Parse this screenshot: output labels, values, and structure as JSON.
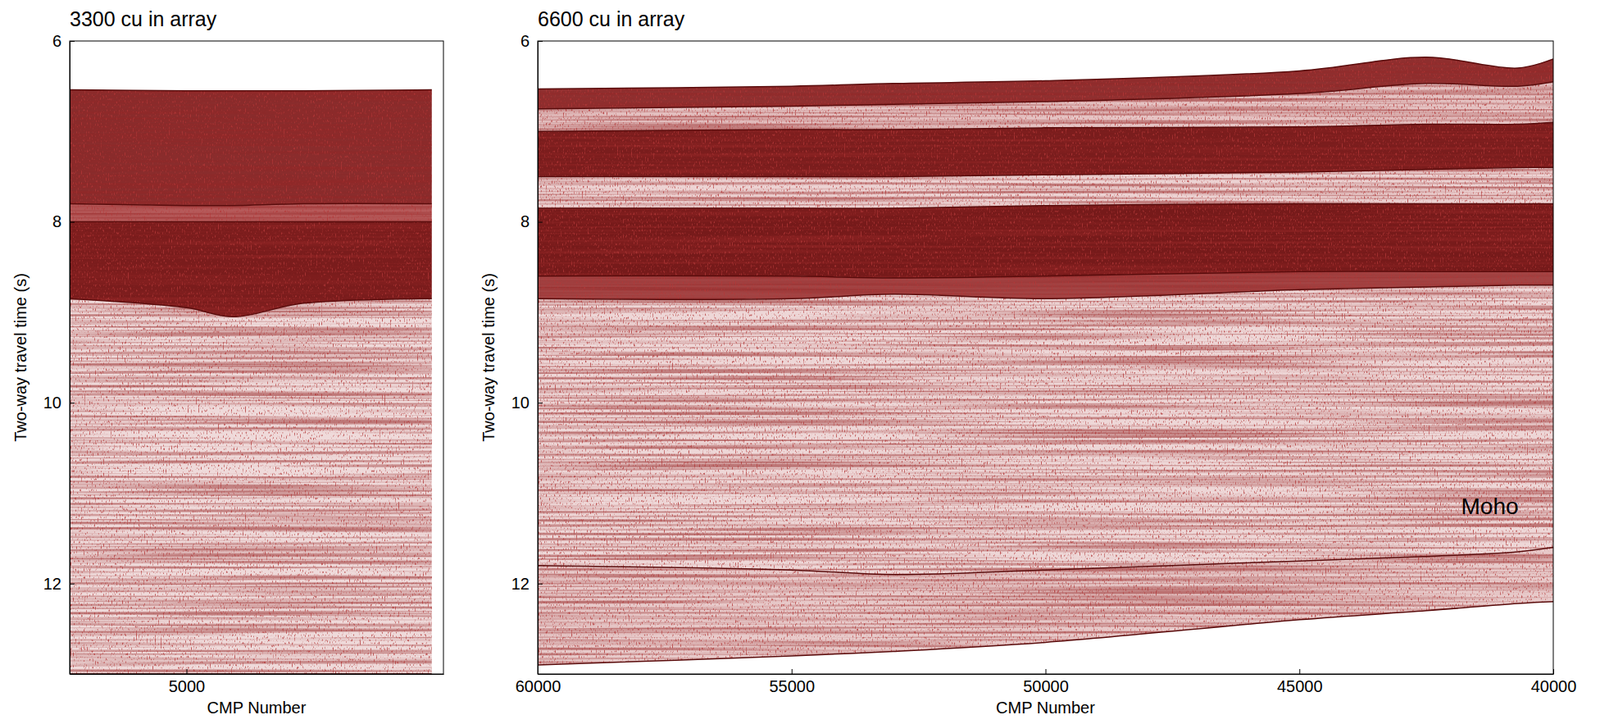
{
  "chart_data": [
    {
      "type": "seismic",
      "title": "3300 cu in array",
      "xlabel": "CMP Number",
      "ylabel": "Two-way travel time (s)",
      "xlim": [
        5500,
        3900
      ],
      "xticks": [
        5000
      ],
      "ylim": [
        6,
        13
      ],
      "yticks": [
        6,
        8,
        10,
        12
      ],
      "x": [
        5500,
        5000,
        4800,
        4500,
        3950
      ],
      "series": [
        {
          "values": [
            6.54,
            6.55,
            6.55,
            6.55,
            6.54
          ],
          "color": "#8a2c2c"
        },
        {
          "values": [
            7.8,
            7.82,
            7.82,
            7.8,
            7.8
          ],
          "color": "#b65a5a"
        },
        {
          "values": [
            8.0,
            8.0,
            8.0,
            8.0,
            8.0
          ],
          "color": "#7a1c1c"
        },
        {
          "values": [
            8.85,
            8.95,
            9.05,
            8.9,
            8.85
          ],
          "color": "#efdada"
        },
        {
          "values": [
            13.0,
            13.0,
            13.0,
            13.0,
            13.0
          ]
        }
      ]
    },
    {
      "type": "seismic",
      "title": "6600 cu in array",
      "xlabel": "CMP Number",
      "ylabel": "Two-way travel time (s)",
      "xlim": [
        60000,
        40000
      ],
      "xticks": [
        60000,
        55000,
        50000,
        45000,
        40000
      ],
      "ylim": [
        6,
        13
      ],
      "yticks": [
        6,
        8,
        10,
        12
      ],
      "x": [
        60000,
        55000,
        53000,
        50000,
        45000,
        42500,
        40700,
        40000
      ],
      "series": [
        {
          "values": [
            6.53,
            6.5,
            6.47,
            6.44,
            6.33,
            6.18,
            6.3,
            6.2
          ],
          "color": "#8f3030"
        },
        {
          "values": [
            6.75,
            6.72,
            6.7,
            6.67,
            6.58,
            6.47,
            6.5,
            6.45
          ],
          "color": "#e6c4c4"
        },
        {
          "values": [
            7.0,
            6.98,
            6.98,
            6.96,
            6.95,
            6.92,
            6.92,
            6.9
          ],
          "color": "#7a1d1d"
        },
        {
          "values": [
            7.5,
            7.5,
            7.5,
            7.48,
            7.45,
            7.42,
            7.4,
            7.4
          ],
          "color": "#edd3d3"
        },
        {
          "values": [
            7.85,
            7.85,
            7.85,
            7.82,
            7.8,
            7.8,
            7.8,
            7.8
          ],
          "color": "#761a1a"
        },
        {
          "values": [
            8.6,
            8.6,
            8.62,
            8.6,
            8.55,
            8.55,
            8.55,
            8.55
          ],
          "color": "#a34444"
        },
        {
          "values": [
            8.85,
            8.85,
            8.8,
            8.85,
            8.75,
            8.72,
            8.7,
            8.7
          ],
          "color": "#eed7d7"
        },
        {
          "values": [
            11.8,
            11.85,
            11.9,
            11.85,
            11.75,
            11.7,
            11.65,
            11.6
          ],
          "color": "#e8caca"
        },
        {
          "values": [
            12.9,
            12.8,
            12.75,
            12.65,
            12.4,
            12.3,
            12.22,
            12.2
          ]
        }
      ],
      "annotations": [
        {
          "text": "Moho",
          "x": 41250,
          "y": 11.15
        }
      ]
    }
  ]
}
